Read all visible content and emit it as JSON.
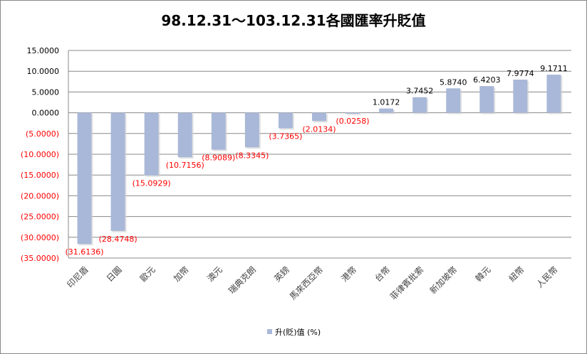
{
  "chart_data": {
    "type": "bar",
    "title": "98.12.31～103.12.31各國匯率升貶值",
    "xlabel": "",
    "ylabel": "",
    "ylim": [
      -35,
      15
    ],
    "yticks": [
      15,
      10,
      5,
      0,
      -5,
      -10,
      -15,
      -20,
      -25,
      -30,
      -35
    ],
    "ytick_labels": [
      "15.0000",
      "10.0000",
      "5.0000",
      "0.0000",
      "(5.0000)",
      "(10.0000)",
      "(15.0000)",
      "(20.0000)",
      "(25.0000)",
      "(30.0000)",
      "(35.0000)"
    ],
    "grid": true,
    "legend_position": "bottom",
    "categories": [
      "印尼盾",
      "日圓",
      "歐元",
      "加幣",
      "澳元",
      "瑞典克朗",
      "英鎊",
      "馬來西亞幣",
      "港幣",
      "台幣",
      "菲律賓批索",
      "新加坡幣",
      "韓元",
      "紐幣",
      "人民幣"
    ],
    "series": [
      {
        "name": "升(貶)值 (%)",
        "color": "#a9b8d8",
        "values": [
          -31.6136,
          -28.4748,
          -15.0929,
          -10.7156,
          -8.9089,
          -8.3345,
          -3.7365,
          -2.0134,
          -0.0258,
          1.0172,
          3.7452,
          5.874,
          6.4203,
          7.9774,
          9.1711
        ]
      }
    ],
    "data_labels": [
      "(31.6136)",
      "(28.4748)",
      "(15.0929)",
      "(10.7156)",
      "(8.9089)",
      "(8.3345)",
      "(3.7365)",
      "(2.0134)",
      "(0.0258)",
      "1.0172",
      "3.7452",
      "5.8740",
      "6.4203",
      "7.9774",
      "9.1711"
    ],
    "negative_label_color": "#ff0000"
  }
}
